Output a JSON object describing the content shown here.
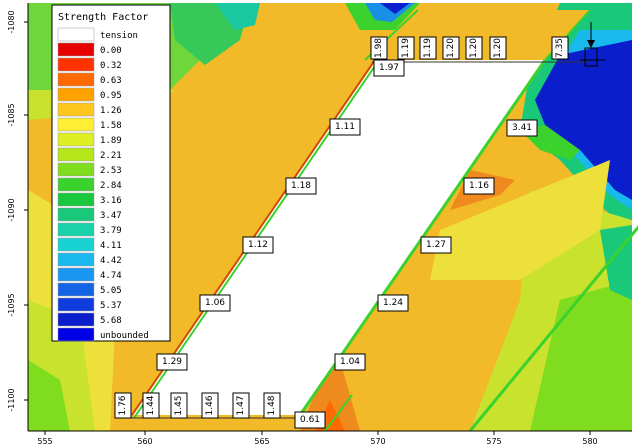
{
  "legend": {
    "title": "Strength Factor",
    "entries": [
      {
        "label": "tension",
        "color": "#ffffff"
      },
      {
        "label": "0.00",
        "color": "#e60000"
      },
      {
        "label": "0.32",
        "color": "#ff3300"
      },
      {
        "label": "0.63",
        "color": "#ff6a00"
      },
      {
        "label": "0.95",
        "color": "#ffa200"
      },
      {
        "label": "1.26",
        "color": "#ffc61e"
      },
      {
        "label": "1.58",
        "color": "#ffee33"
      },
      {
        "label": "1.89",
        "color": "#ddee22"
      },
      {
        "label": "2.21",
        "color": "#b4e61a"
      },
      {
        "label": "2.53",
        "color": "#7fdc1e"
      },
      {
        "label": "2.84",
        "color": "#3cd22d"
      },
      {
        "label": "3.16",
        "color": "#19c83c"
      },
      {
        "label": "3.47",
        "color": "#19c878"
      },
      {
        "label": "3.79",
        "color": "#19d2aa"
      },
      {
        "label": "4.11",
        "color": "#19d2d2"
      },
      {
        "label": "4.42",
        "color": "#19b9ee"
      },
      {
        "label": "4.74",
        "color": "#1996f0"
      },
      {
        "label": "5.05",
        "color": "#1464e6"
      },
      {
        "label": "5.37",
        "color": "#0f3cdc"
      },
      {
        "label": "5.68",
        "color": "#0a1ecc"
      },
      {
        "label": "unbounded",
        "color": "#0000e6"
      }
    ]
  },
  "x_ticks": [
    "555",
    "560",
    "565",
    "570",
    "575",
    "580"
  ],
  "y_ticks": [
    "-1080",
    "-1085",
    "-1090",
    "-1095",
    "-1100"
  ],
  "value_labels": [
    "1.98",
    "1.19",
    "1.19",
    "1.20",
    "1.20",
    "1.20",
    "7.35",
    "1.97",
    "1.11",
    "3.41",
    "1.18",
    "1.16",
    "1.12",
    "1.27",
    "1.06",
    "1.24",
    "1.29",
    "1.04",
    "1.76",
    "1.44",
    "1.45",
    "1.46",
    "1.47",
    "1.48",
    "0.61"
  ],
  "colors": {
    "orange": "#f5b525",
    "yellow": "#eee03a",
    "green": "#5ad23a",
    "lime": "#c8e22e",
    "cyan": "#1ec8c8",
    "blue": "#0a1ecc",
    "deep_orange": "#ef8a1e"
  }
}
